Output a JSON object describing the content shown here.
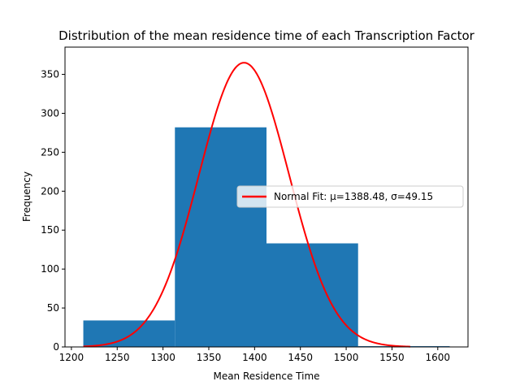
{
  "chart_data": {
    "type": "bar",
    "title": "Distribution of the mean residence time of each Transcription Factor",
    "xlabel": "Mean Residence Time",
    "ylabel": "Frequency",
    "xlim": [
      1193,
      1633
    ],
    "ylim": [
      0,
      385
    ],
    "xticks": [
      1200,
      1250,
      1300,
      1350,
      1400,
      1450,
      1500,
      1550,
      1600
    ],
    "yticks": [
      0,
      50,
      100,
      150,
      200,
      250,
      300,
      350
    ],
    "grid": false,
    "legend_position": "center-right",
    "bins": [
      {
        "start": 1213,
        "end": 1313,
        "count": 34
      },
      {
        "start": 1313,
        "end": 1413,
        "count": 282
      },
      {
        "start": 1413,
        "end": 1513,
        "count": 133
      },
      {
        "start": 1513,
        "end": 1613,
        "count": 1
      }
    ],
    "series": [
      {
        "name": "Normal Fit: μ=1388.48, σ=49.15",
        "type": "line",
        "mu": 1388.48,
        "sigma": 49.15,
        "peak": 365,
        "x_range": [
          1213,
          1570
        ],
        "color": "#ff0000"
      }
    ],
    "bar_color": "#1f77b4"
  }
}
